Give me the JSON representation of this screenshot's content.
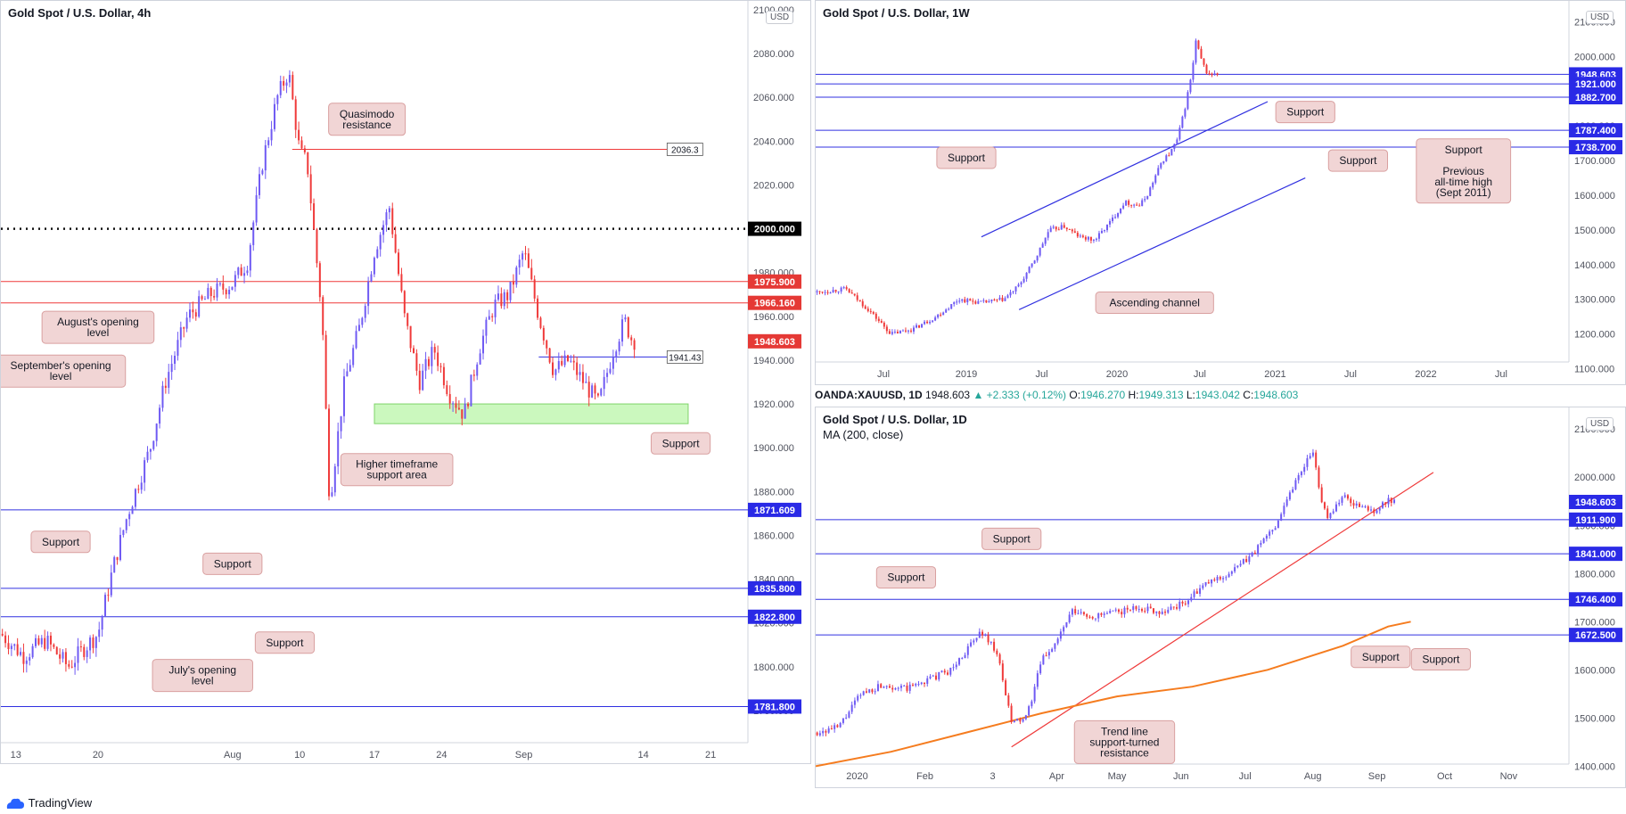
{
  "infobar": {
    "symbol": "OANDA:XAUUSD, 1D",
    "price": "1948.603",
    "change": "▲ +2.333 (+0.12%)",
    "o_label": "O:",
    "o": "1946.270",
    "h_label": "H:",
    "h": "1949.313",
    "l_label": "L:",
    "l": "1943.042",
    "c_label": "C:",
    "c": "1948.603"
  },
  "branding": {
    "logo": "TradingView",
    "logo_icon": "tradingview-cloud-icon"
  },
  "colors": {
    "up": "#6f5af3",
    "down": "#ef3a3a",
    "support_line": "#3030e0",
    "resistance_line": "#ef3a3a",
    "zone_fill": "#b9f5a8",
    "ma200": "#f57c1f",
    "callout_fill": "#f1d5d5",
    "callout_border": "#d9a0a0",
    "price_tag_blue": "#2a2ae6",
    "price_tag_red": "#e53935"
  },
  "chart_data": [
    {
      "id": "h4",
      "type": "candlestick",
      "title": "Gold Spot / U.S. Dollar, 4h",
      "currency": "USD",
      "ylim": [
        1760,
        2100
      ],
      "ytick_values": [
        1780,
        1800,
        1820,
        1840,
        1860,
        1880,
        1900,
        1920,
        1940,
        1960,
        1980,
        2000,
        2020,
        2040,
        2060,
        2080,
        2100
      ],
      "ytick_labels": [
        "1780.000",
        "1800.000",
        "1820.000",
        "1840.000",
        "1860.000",
        "1880.000",
        "1900.000",
        "1920.000",
        "1940.000",
        "1960.000",
        "1980.000",
        "2000.000",
        "2020.000",
        "2040.000",
        "2060.000",
        "2080.000",
        "2100.000"
      ],
      "xticks": [
        {
          "t": 0.02,
          "label": "13"
        },
        {
          "t": 0.13,
          "label": "20"
        },
        {
          "t": 0.31,
          "label": "Aug"
        },
        {
          "t": 0.4,
          "label": "10"
        },
        {
          "t": 0.5,
          "label": "17"
        },
        {
          "t": 0.59,
          "label": "24"
        },
        {
          "t": 0.7,
          "label": "Sep"
        },
        {
          "t": 0.86,
          "label": "14"
        },
        {
          "t": 0.95,
          "label": "21"
        }
      ],
      "price_path": [
        [
          0,
          1815
        ],
        [
          0.03,
          1805
        ],
        [
          0.06,
          1812
        ],
        [
          0.09,
          1800
        ],
        [
          0.11,
          1808
        ],
        [
          0.13,
          1815
        ],
        [
          0.15,
          1845
        ],
        [
          0.17,
          1870
        ],
        [
          0.2,
          1900
        ],
        [
          0.22,
          1930
        ],
        [
          0.25,
          1960
        ],
        [
          0.28,
          1970
        ],
        [
          0.31,
          1975
        ],
        [
          0.33,
          1985
        ],
        [
          0.35,
          2030
        ],
        [
          0.37,
          2060
        ],
        [
          0.385,
          2072
        ],
        [
          0.4,
          2035
        ],
        [
          0.41,
          2030
        ],
        [
          0.43,
          1960
        ],
        [
          0.44,
          1875
        ],
        [
          0.46,
          1930
        ],
        [
          0.48,
          1955
        ],
        [
          0.5,
          1990
        ],
        [
          0.52,
          2010
        ],
        [
          0.54,
          1960
        ],
        [
          0.56,
          1930
        ],
        [
          0.58,
          1945
        ],
        [
          0.6,
          1925
        ],
        [
          0.62,
          1915
        ],
        [
          0.64,
          1945
        ],
        [
          0.66,
          1965
        ],
        [
          0.68,
          1970
        ],
        [
          0.7,
          1990
        ],
        [
          0.72,
          1960
        ],
        [
          0.74,
          1935
        ],
        [
          0.76,
          1940
        ],
        [
          0.78,
          1930
        ],
        [
          0.8,
          1920
        ],
        [
          0.82,
          1945
        ],
        [
          0.835,
          1958
        ],
        [
          0.845,
          1949
        ]
      ],
      "end_t": 0.85,
      "levels": [
        {
          "value": 2000,
          "style": "dotted",
          "label": "2000.000",
          "tag": "black"
        },
        {
          "value": 1975.9,
          "style": "red",
          "label": "1975.900",
          "tag": "red"
        },
        {
          "value": 1966.16,
          "style": "red",
          "label": "1966.160",
          "tag": "red"
        },
        {
          "value": 1948.603,
          "style": "none",
          "label": "1948.603",
          "tag": "red"
        },
        {
          "value": 1871.609,
          "style": "blue",
          "label": "1871.609",
          "tag": "blue"
        },
        {
          "value": 1835.8,
          "style": "blue",
          "label": "1835.800",
          "tag": "blue"
        },
        {
          "value": 1822.8,
          "style": "blue",
          "label": "1822.800",
          "tag": "blue"
        },
        {
          "value": 1781.8,
          "style": "blue",
          "label": "1781.800",
          "tag": "blue"
        }
      ],
      "short_levels": [
        {
          "value": 2036.3,
          "t0": 0.39,
          "t1": 0.93,
          "color": "red",
          "label": "2036.3"
        },
        {
          "value": 1941.43,
          "t0": 0.72,
          "t1": 0.93,
          "color": "blue",
          "label": "1941.43"
        }
      ],
      "zone": {
        "y0": 1911,
        "y1": 1920,
        "t0": 0.5,
        "t1": 0.92
      },
      "callouts": [
        {
          "text": "Quasimodo\nresistance",
          "t": 0.49,
          "y": 2050
        },
        {
          "text": "August's opening\nlevel",
          "t": 0.13,
          "y": 1955
        },
        {
          "text": "September's opening\nlevel",
          "t": 0.08,
          "y": 1935
        },
        {
          "text": "Higher timeframe\nsupport area",
          "t": 0.53,
          "y": 1890
        },
        {
          "text": "Support",
          "t": 0.91,
          "y": 1902
        },
        {
          "text": "Support",
          "t": 0.08,
          "y": 1857
        },
        {
          "text": "Support",
          "t": 0.31,
          "y": 1847
        },
        {
          "text": "Support",
          "t": 0.38,
          "y": 1811
        },
        {
          "text": "July's opening\nlevel",
          "t": 0.27,
          "y": 1796
        }
      ]
    },
    {
      "id": "w1",
      "type": "candlestick",
      "title": "Gold Spot / U.S. Dollar, 1W",
      "currency": "USD",
      "ylim": [
        1060,
        2140
      ],
      "ytick_values": [
        1100,
        1200,
        1300,
        1400,
        1500,
        1600,
        1700,
        1800,
        1900,
        2000,
        2100
      ],
      "ytick_labels": [
        "1100.000",
        "1200.000",
        "1300.000",
        "1400.000",
        "1500.000",
        "1600.000",
        "1700.000",
        "1800.000",
        "1900.000",
        "2000.000",
        "2100.000"
      ],
      "xticks": [
        {
          "t": 0.09,
          "label": "Jul"
        },
        {
          "t": 0.2,
          "label": "2019"
        },
        {
          "t": 0.3,
          "label": "Jul"
        },
        {
          "t": 0.4,
          "label": "2020"
        },
        {
          "t": 0.51,
          "label": "Jul"
        },
        {
          "t": 0.61,
          "label": "2021"
        },
        {
          "t": 0.71,
          "label": "Jul"
        },
        {
          "t": 0.81,
          "label": "2022"
        },
        {
          "t": 0.91,
          "label": "Jul"
        }
      ],
      "price_path": [
        [
          0,
          1320
        ],
        [
          0.04,
          1330
        ],
        [
          0.07,
          1270
        ],
        [
          0.1,
          1200
        ],
        [
          0.13,
          1215
        ],
        [
          0.16,
          1250
        ],
        [
          0.19,
          1300
        ],
        [
          0.22,
          1290
        ],
        [
          0.25,
          1300
        ],
        [
          0.27,
          1340
        ],
        [
          0.29,
          1410
        ],
        [
          0.31,
          1500
        ],
        [
          0.33,
          1510
        ],
        [
          0.35,
          1480
        ],
        [
          0.37,
          1470
        ],
        [
          0.39,
          1520
        ],
        [
          0.41,
          1580
        ],
        [
          0.43,
          1570
        ],
        [
          0.44,
          1600
        ],
        [
          0.45,
          1650
        ],
        [
          0.46,
          1700
        ],
        [
          0.47,
          1720
        ],
        [
          0.48,
          1760
        ],
        [
          0.49,
          1850
        ],
        [
          0.5,
          1960
        ],
        [
          0.505,
          2050
        ],
        [
          0.51,
          2000
        ],
        [
          0.52,
          1950
        ],
        [
          0.53,
          1948
        ]
      ],
      "end_t": 0.535,
      "levels": [
        {
          "value": 1948.603,
          "style": "blue",
          "label": "1948.603",
          "tag": "blue",
          "t0": 0
        },
        {
          "value": 1921.0,
          "style": "blue",
          "label": "1921.000",
          "tag": "blue",
          "t0": 0
        },
        {
          "value": 1882.7,
          "style": "blue",
          "label": "1882.700",
          "tag": "blue",
          "t0": 0
        },
        {
          "value": 1787.4,
          "style": "blue",
          "label": "1787.400",
          "tag": "blue",
          "t0": 0
        },
        {
          "value": 1738.7,
          "style": "blue",
          "label": "1738.700",
          "tag": "blue",
          "t0": 0
        }
      ],
      "channel": [
        {
          "t0": 0.22,
          "y0": 1480,
          "t1": 0.6,
          "y1": 1870
        },
        {
          "t0": 0.27,
          "y0": 1270,
          "t1": 0.65,
          "y1": 1650
        }
      ],
      "callouts": [
        {
          "text": "Support",
          "t": 0.65,
          "y": 1840
        },
        {
          "text": "Support",
          "t": 0.2,
          "y": 1708
        },
        {
          "text": "Support",
          "t": 0.72,
          "y": 1700
        },
        {
          "text": "Support\n\nPrevious\nall-time high\n(Sept 2011)",
          "t": 0.86,
          "y": 1670
        },
        {
          "text": "Ascending channel",
          "t": 0.45,
          "y": 1290
        }
      ]
    },
    {
      "id": "d1",
      "type": "candlestick",
      "title": "Gold Spot / U.S. Dollar, 1D",
      "subtitle": "MA (200, close)",
      "currency": "USD",
      "ylim": [
        1360,
        2130
      ],
      "ytick_values": [
        1400,
        1500,
        1600,
        1700,
        1800,
        1900,
        2000,
        2100
      ],
      "ytick_labels": [
        "1400.000",
        "1500.000",
        "1600.000",
        "1700.000",
        "1800.000",
        "1900.000",
        "2000.000",
        "2100.000"
      ],
      "xticks": [
        {
          "t": 0.055,
          "label": "2020"
        },
        {
          "t": 0.145,
          "label": "Feb"
        },
        {
          "t": 0.235,
          "label": "3"
        },
        {
          "t": 0.32,
          "label": "Apr"
        },
        {
          "t": 0.4,
          "label": "May"
        },
        {
          "t": 0.485,
          "label": "Jun"
        },
        {
          "t": 0.57,
          "label": "Jul"
        },
        {
          "t": 0.66,
          "label": "Aug"
        },
        {
          "t": 0.745,
          "label": "Sep"
        },
        {
          "t": 0.835,
          "label": "Oct"
        },
        {
          "t": 0.92,
          "label": "Nov"
        }
      ],
      "price_path": [
        [
          0,
          1470
        ],
        [
          0.03,
          1480
        ],
        [
          0.06,
          1550
        ],
        [
          0.09,
          1570
        ],
        [
          0.12,
          1560
        ],
        [
          0.15,
          1580
        ],
        [
          0.18,
          1600
        ],
        [
          0.2,
          1640
        ],
        [
          0.22,
          1680
        ],
        [
          0.24,
          1640
        ],
        [
          0.26,
          1490
        ],
        [
          0.28,
          1500
        ],
        [
          0.3,
          1620
        ],
        [
          0.32,
          1660
        ],
        [
          0.34,
          1720
        ],
        [
          0.37,
          1710
        ],
        [
          0.4,
          1720
        ],
        [
          0.43,
          1730
        ],
        [
          0.46,
          1720
        ],
        [
          0.49,
          1740
        ],
        [
          0.52,
          1780
        ],
        [
          0.55,
          1800
        ],
        [
          0.58,
          1840
        ],
        [
          0.61,
          1900
        ],
        [
          0.63,
          1970
        ],
        [
          0.65,
          2030
        ],
        [
          0.66,
          2060
        ],
        [
          0.67,
          1950
        ],
        [
          0.68,
          1920
        ],
        [
          0.7,
          1960
        ],
        [
          0.72,
          1940
        ],
        [
          0.74,
          1930
        ],
        [
          0.76,
          1950
        ],
        [
          0.765,
          1948
        ]
      ],
      "end_t": 0.77,
      "ma_path": [
        [
          0,
          1400
        ],
        [
          0.1,
          1430
        ],
        [
          0.2,
          1470
        ],
        [
          0.3,
          1510
        ],
        [
          0.4,
          1545
        ],
        [
          0.5,
          1565
        ],
        [
          0.6,
          1600
        ],
        [
          0.7,
          1650
        ],
        [
          0.76,
          1690
        ],
        [
          0.79,
          1700
        ]
      ],
      "levels": [
        {
          "value": 1948.603,
          "style": "none",
          "label": "1948.603",
          "tag": "blue"
        },
        {
          "value": 1911.9,
          "style": "blue",
          "label": "1911.900",
          "tag": "blue"
        },
        {
          "value": 1841.0,
          "style": "blue",
          "label": "1841.000",
          "tag": "blue"
        },
        {
          "value": 1746.4,
          "style": "blue",
          "label": "1746.400",
          "tag": "blue"
        },
        {
          "value": 1672.5,
          "style": "blue",
          "label": "1672.500",
          "tag": "blue"
        }
      ],
      "trendline": {
        "t0": 0.26,
        "y0": 1440,
        "t1": 0.82,
        "y1": 2010
      },
      "callouts": [
        {
          "text": "Support",
          "t": 0.26,
          "y": 1872
        },
        {
          "text": "Support",
          "t": 0.12,
          "y": 1792
        },
        {
          "text": "Support",
          "t": 0.75,
          "y": 1627
        },
        {
          "text": "Support",
          "t": 0.83,
          "y": 1622
        },
        {
          "text": "Trend line\nsupport-turned\nresistance",
          "t": 0.41,
          "y": 1450
        }
      ]
    }
  ]
}
